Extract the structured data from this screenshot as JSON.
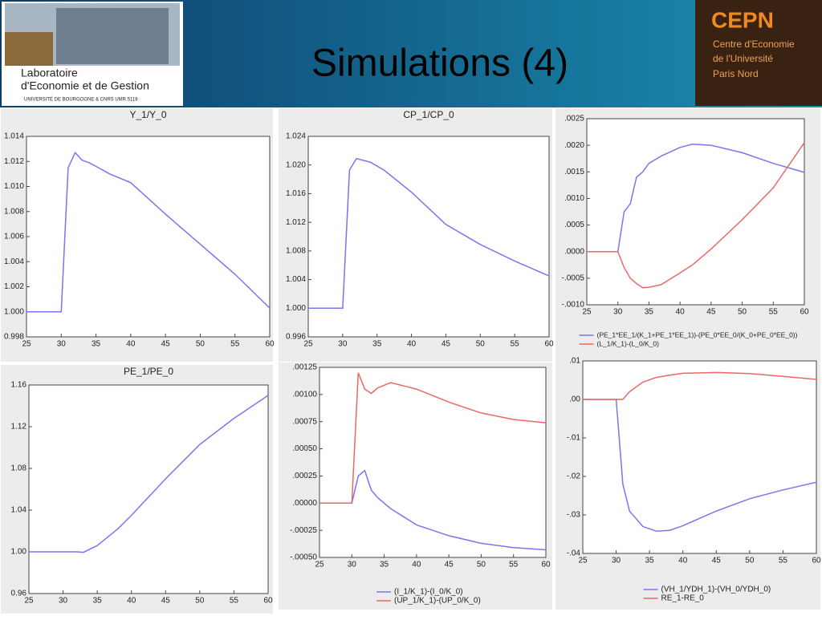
{
  "header": {
    "title": "Simulations (4)",
    "left_logo": [
      "Laboratoire",
      "d'Economie et de Gestion",
      "UNIVERSITÉ DE BOURGOGNE & CNRS UMR 5118"
    ],
    "right_logo": [
      "CEPN",
      "Centre d'Economie",
      "de l'Université",
      "Paris Nord"
    ]
  },
  "chart_data": [
    {
      "type": "line",
      "title": "Y_1/Y_0",
      "x": [
        25,
        30,
        31,
        32,
        33,
        34,
        35,
        37,
        40,
        45,
        50,
        55,
        60
      ],
      "values": [
        1,
        1,
        1.0115,
        1.0127,
        1.0121,
        1.0119,
        1.0116,
        1.011,
        1.0103,
        1.0078,
        1.0054,
        1.003,
        1.0003
      ],
      "color": "#7777ee",
      "xlim": [
        25,
        60
      ],
      "xticks": [
        25,
        30,
        35,
        40,
        45,
        50,
        55,
        60
      ],
      "ylim": [
        0.998,
        1.014
      ],
      "yticks": [
        0.998,
        {
          "value": 1,
          "label": "1.000"
        },
        1.002,
        1.004,
        1.006,
        1.008,
        {
          "value": 1.01,
          "label": "1.010"
        },
        1.012,
        1.014
      ]
    },
    {
      "type": "line",
      "title": "CP_1/CP_0",
      "x": [
        25,
        30,
        31,
        32,
        34,
        36,
        40,
        45,
        50,
        55,
        60
      ],
      "values": [
        1,
        1,
        1.0193,
        1.0209,
        1.0204,
        1.0193,
        1.0162,
        1.0117,
        1.0089,
        1.0066,
        1.0045
      ],
      "color": "#7777ee",
      "xlim": [
        25,
        60
      ],
      "xticks": [
        25,
        30,
        35,
        40,
        45,
        50,
        55,
        60
      ],
      "ylim": [
        0.996,
        1.024
      ],
      "yticks": [
        0.996,
        {
          "value": 1,
          "label": "1.000"
        },
        1.004,
        1.008,
        1.012,
        1.016,
        {
          "value": 1.02,
          "label": "1.020"
        },
        1.024
      ]
    },
    {
      "type": "line",
      "x": [
        25,
        30,
        31,
        32,
        33,
        34,
        35,
        37,
        40,
        42,
        45,
        50,
        55,
        60
      ],
      "series": [
        {
          "name": "(PE_1*EE_1/(K_1+PE_1*EE_1))-(PE_0*EE_0/(K_0+PE_0*EE_0))",
          "color": "#7777ee",
          "values": [
            0,
            0,
            0.00075,
            0.0009,
            0.0014,
            0.0015,
            0.00166,
            0.0018,
            0.00196,
            0.00202,
            0.002,
            0.00186,
            0.00166,
            0.00149
          ]
        },
        {
          "name": "(L_1/K_1)-(L_0/K_0)",
          "color": "#ee6666",
          "values": [
            0,
            0,
            -0.0003,
            -0.0005,
            -0.0006,
            -0.00068,
            -0.00067,
            -0.00062,
            -0.0004,
            -0.00025,
            5e-05,
            0.0006,
            0.0012,
            0.00205
          ]
        }
      ],
      "xlim": [
        25,
        60
      ],
      "xticks": [
        25,
        30,
        35,
        40,
        45,
        50,
        55,
        60
      ],
      "ylim": [
        -0.001,
        0.0025
      ],
      "yticks": [
        {
          "value": -0.001,
          "label": "-.0010"
        },
        {
          "value": -0.0005,
          "label": "-.0005"
        },
        {
          "value": 0,
          "label": ".0000"
        },
        {
          "value": 0.0005,
          "label": ".0005"
        },
        {
          "value": 0.001,
          "label": ".0010"
        },
        {
          "value": 0.0015,
          "label": ".0015"
        },
        {
          "value": 0.002,
          "label": ".0020"
        },
        {
          "value": 0.0025,
          "label": ".0025"
        }
      ]
    },
    {
      "type": "line",
      "title": "PE_1/PE_0",
      "x": [
        25,
        30,
        32,
        33,
        35,
        38,
        40,
        45,
        50,
        55,
        60
      ],
      "values": [
        1,
        1,
        1,
        0.9995,
        1.006,
        1.022,
        1.035,
        1.07,
        1.103,
        1.128,
        1.15
      ],
      "color": "#7777ee",
      "xlim": [
        25,
        60
      ],
      "xticks": [
        25,
        30,
        35,
        40,
        45,
        50,
        55,
        60
      ],
      "ylim": [
        0.96,
        1.16
      ],
      "yticks": [
        0.96,
        {
          "value": 1,
          "label": "1.00"
        },
        1.04,
        1.08,
        1.12,
        1.16
      ]
    },
    {
      "type": "line",
      "x": [
        25,
        30,
        31,
        32,
        33,
        34,
        36,
        40,
        45,
        50,
        55,
        60
      ],
      "series": [
        {
          "name": "(I_1/K_1)-(I_0/K_0)",
          "color": "#7777ee",
          "values": [
            0,
            0,
            0.00025,
            0.0003,
            0.00012,
            5e-05,
            -5e-05,
            -0.0002,
            -0.0003,
            -0.00037,
            -0.00041,
            -0.00043
          ]
        },
        {
          "name": "(UP_1/K_1)-(UP_0/K_0)",
          "color": "#ee6666",
          "values": [
            0,
            0,
            0.0012,
            0.00105,
            0.00101,
            0.00106,
            0.00111,
            0.00105,
            0.00093,
            0.00083,
            0.00077,
            0.00074
          ]
        }
      ],
      "xlim": [
        25,
        60
      ],
      "xticks": [
        25,
        30,
        35,
        40,
        45,
        50,
        55,
        60
      ],
      "ylim": [
        -0.0005,
        0.00125
      ],
      "yticks": [
        {
          "value": -0.0005,
          "label": "-.00050"
        },
        {
          "value": -0.00025,
          "label": "-.00025"
        },
        {
          "value": 0,
          "label": ".00000"
        },
        {
          "value": 0.00025,
          "label": ".00025"
        },
        {
          "value": 0.0005,
          "label": ".00050"
        },
        {
          "value": 0.00075,
          "label": ".00075"
        },
        {
          "value": 0.001,
          "label": ".00100"
        },
        {
          "value": 0.00125,
          "label": ".00125"
        }
      ]
    },
    {
      "type": "line",
      "x": [
        25,
        30,
        31,
        32,
        34,
        36,
        38,
        40,
        45,
        50,
        55,
        60
      ],
      "series": [
        {
          "name": "(VH_1/YDH_1)-(VH_0/YDH_0)",
          "color": "#7777ee",
          "values": [
            0,
            0,
            -0.022,
            -0.029,
            -0.033,
            -0.0342,
            -0.034,
            -0.0328,
            -0.029,
            -0.0258,
            -0.0235,
            -0.0215
          ]
        },
        {
          "name": "RE_1-RE_0",
          "color": "#ee6666",
          "values": [
            0,
            0,
            0,
            0.002,
            0.0045,
            0.0057,
            0.0063,
            0.0068,
            0.007,
            0.0067,
            0.006,
            0.0052
          ]
        }
      ],
      "xlim": [
        25,
        60
      ],
      "xticks": [
        25,
        30,
        35,
        40,
        45,
        50,
        55,
        60
      ],
      "ylim": [
        -0.04,
        0.01
      ],
      "yticks": [
        {
          "value": -0.04,
          "label": "-.04"
        },
        {
          "value": -0.03,
          "label": "-.03"
        },
        {
          "value": -0.02,
          "label": "-.02"
        },
        {
          "value": -0.01,
          "label": "-.01"
        },
        {
          "value": 0,
          "label": ".00"
        },
        {
          "value": 0.01,
          "label": ".01"
        }
      ]
    }
  ]
}
